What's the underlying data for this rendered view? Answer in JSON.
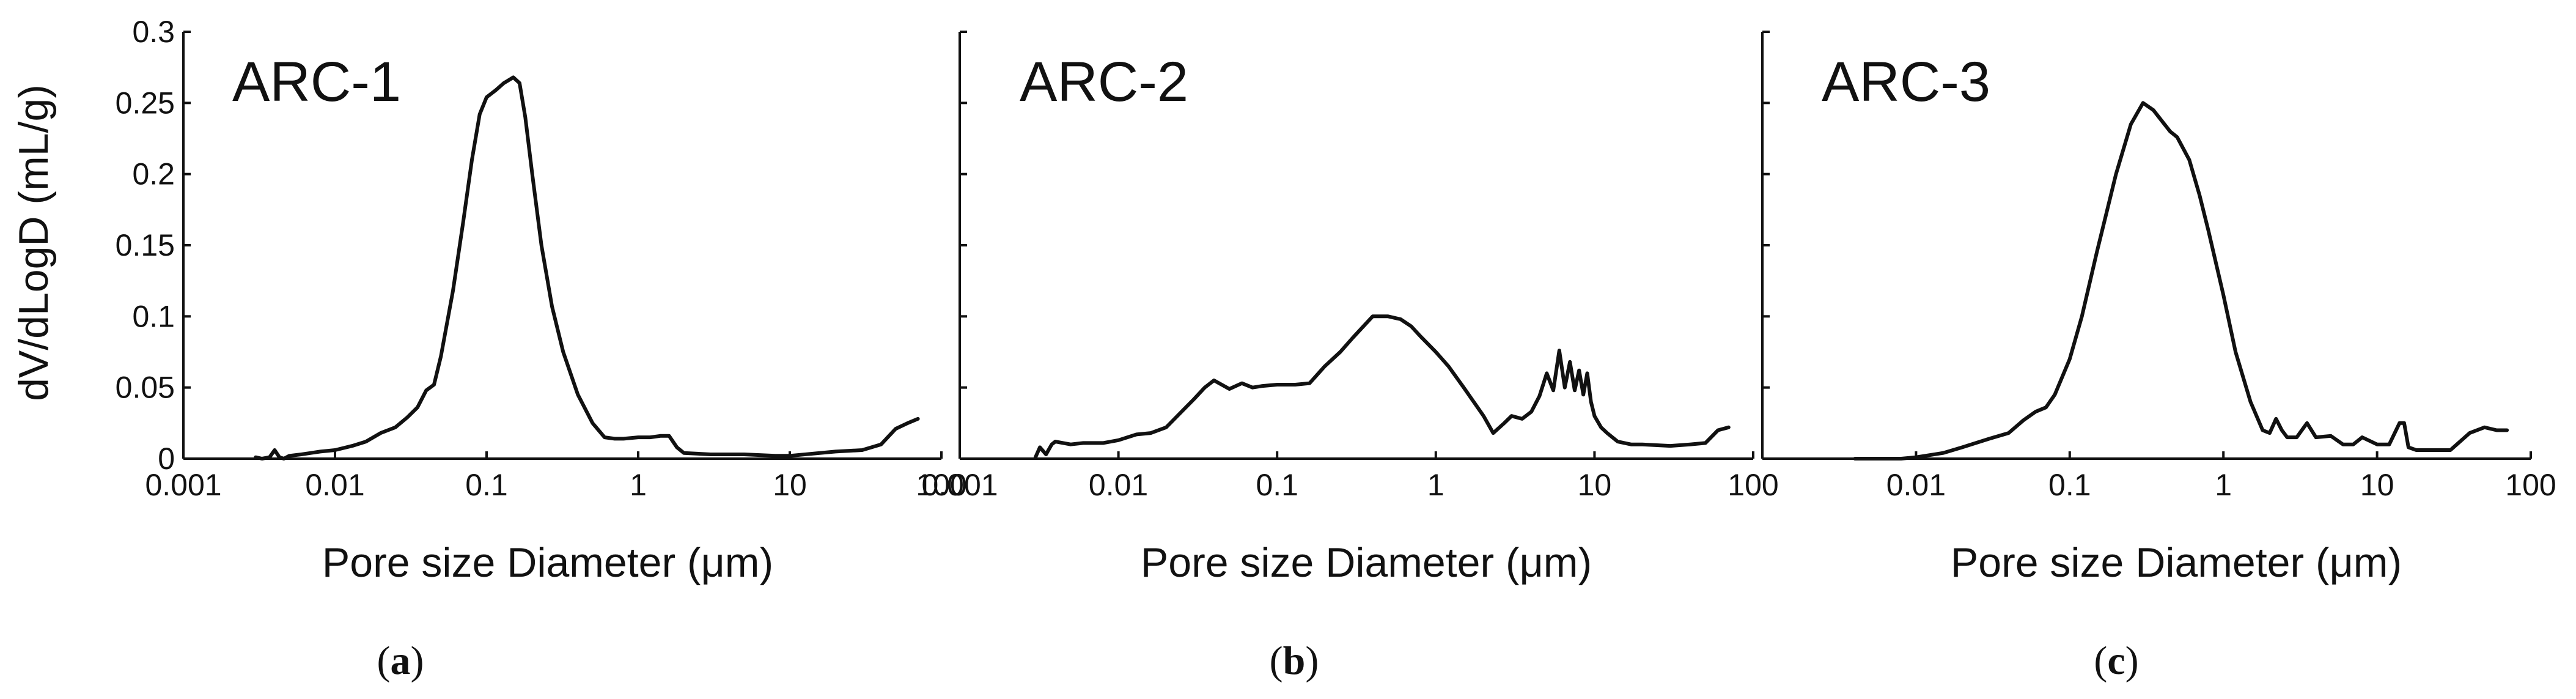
{
  "chart_data": [
    {
      "type": "line",
      "title": "ARC-1",
      "panel_label": "a",
      "xlabel": "Pore size Diameter (μm)",
      "ylabel": "dV/dLogD (mL/g)",
      "xscale": "log",
      "xlim": [
        0.001,
        100
      ],
      "ylim": [
        0,
        0.3
      ],
      "xticks": [
        "0.001",
        "0.01",
        "0.1",
        "1",
        "10",
        "100"
      ],
      "yticks": [
        "0",
        "0.05",
        "0.1",
        "0.15",
        "0.2",
        "0.25",
        "0.3"
      ],
      "series": [
        {
          "x": [
            0.003,
            0.0033,
            0.0037,
            0.004,
            0.0043,
            0.0046,
            0.005,
            0.006,
            0.008,
            0.01,
            0.013,
            0.016,
            0.02,
            0.025,
            0.03,
            0.035,
            0.04,
            0.045,
            0.05,
            0.06,
            0.07,
            0.08,
            0.09,
            0.1,
            0.115,
            0.13,
            0.15,
            0.165,
            0.18,
            0.2,
            0.23,
            0.27,
            0.32,
            0.4,
            0.5,
            0.6,
            0.7,
            0.8,
            1.0,
            1.2,
            1.4,
            1.6,
            1.8,
            2.0,
            3.0,
            5.0,
            8.0,
            10,
            20,
            30,
            40,
            50,
            60,
            70
          ],
          "y": [
            0.001,
            0.0,
            0.001,
            0.006,
            0.001,
            0.0,
            0.002,
            0.003,
            0.005,
            0.006,
            0.009,
            0.012,
            0.018,
            0.022,
            0.029,
            0.036,
            0.048,
            0.052,
            0.072,
            0.118,
            0.166,
            0.21,
            0.242,
            0.254,
            0.259,
            0.264,
            0.268,
            0.264,
            0.24,
            0.2,
            0.15,
            0.107,
            0.075,
            0.045,
            0.025,
            0.015,
            0.014,
            0.014,
            0.015,
            0.015,
            0.016,
            0.016,
            0.008,
            0.004,
            0.003,
            0.003,
            0.002,
            0.002,
            0.005,
            0.006,
            0.01,
            0.021,
            0.025,
            0.028
          ]
        }
      ]
    },
    {
      "type": "line",
      "title": "ARC-2",
      "panel_label": "b",
      "xlabel": "Pore size Diameter (μm)",
      "xscale": "log",
      "xlim": [
        0.001,
        100
      ],
      "ylim": [
        0,
        0.3
      ],
      "xticks": [
        "0.001",
        "0.01",
        "0.1",
        "1",
        "10",
        "100"
      ],
      "series": [
        {
          "x": [
            0.003,
            0.0032,
            0.0035,
            0.0038,
            0.004,
            0.005,
            0.006,
            0.008,
            0.01,
            0.013,
            0.016,
            0.02,
            0.025,
            0.03,
            0.035,
            0.04,
            0.05,
            0.06,
            0.07,
            0.08,
            0.1,
            0.13,
            0.16,
            0.2,
            0.25,
            0.3,
            0.35,
            0.4,
            0.5,
            0.6,
            0.7,
            0.8,
            1.0,
            1.2,
            1.5,
            2.0,
            2.3,
            2.7,
            3.0,
            3.5,
            4.0,
            4.5,
            5.0,
            5.5,
            6.0,
            6.5,
            7.0,
            7.5,
            8.0,
            8.5,
            9.0,
            9.5,
            10,
            11,
            12,
            14,
            17,
            20,
            30,
            40,
            50,
            60,
            70
          ],
          "y": [
            0.001,
            0.008,
            0.003,
            0.01,
            0.012,
            0.01,
            0.011,
            0.011,
            0.013,
            0.017,
            0.018,
            0.022,
            0.033,
            0.042,
            0.05,
            0.055,
            0.049,
            0.053,
            0.05,
            0.051,
            0.052,
            0.052,
            0.053,
            0.065,
            0.075,
            0.085,
            0.093,
            0.1,
            0.1,
            0.098,
            0.093,
            0.086,
            0.075,
            0.065,
            0.05,
            0.03,
            0.018,
            0.025,
            0.03,
            0.028,
            0.033,
            0.044,
            0.06,
            0.048,
            0.076,
            0.05,
            0.068,
            0.048,
            0.062,
            0.045,
            0.06,
            0.04,
            0.03,
            0.022,
            0.018,
            0.012,
            0.01,
            0.01,
            0.009,
            0.01,
            0.011,
            0.02,
            0.022
          ]
        }
      ]
    },
    {
      "type": "line",
      "title": "ARC-3",
      "panel_label": "c",
      "xlabel": "Pore size Diameter (μm)",
      "xscale": "log",
      "xlim": [
        0.001,
        100
      ],
      "ylim": [
        0,
        0.3
      ],
      "xticks": [
        "0.01",
        "0.1",
        "1",
        "10",
        "100"
      ],
      "series": [
        {
          "x": [
            0.004,
            0.006,
            0.008,
            0.01,
            0.015,
            0.02,
            0.03,
            0.04,
            0.05,
            0.06,
            0.07,
            0.08,
            0.1,
            0.12,
            0.15,
            0.2,
            0.25,
            0.3,
            0.35,
            0.4,
            0.45,
            0.5,
            0.6,
            0.7,
            0.8,
            1.0,
            1.2,
            1.5,
            1.8,
            2.0,
            2.2,
            2.4,
            2.6,
            3.0,
            3.5,
            4.0,
            5.0,
            6.0,
            7.0,
            8.0,
            10,
            12,
            14,
            15,
            16,
            18,
            20,
            30,
            40,
            50,
            60,
            70
          ],
          "y": [
            0.0,
            0.0,
            0.0,
            0.001,
            0.004,
            0.008,
            0.014,
            0.018,
            0.027,
            0.033,
            0.036,
            0.045,
            0.07,
            0.1,
            0.145,
            0.2,
            0.235,
            0.25,
            0.245,
            0.237,
            0.23,
            0.226,
            0.21,
            0.185,
            0.16,
            0.115,
            0.075,
            0.04,
            0.02,
            0.018,
            0.028,
            0.02,
            0.015,
            0.015,
            0.025,
            0.015,
            0.016,
            0.01,
            0.01,
            0.015,
            0.01,
            0.01,
            0.025,
            0.025,
            0.008,
            0.006,
            0.006,
            0.006,
            0.018,
            0.022,
            0.02,
            0.02
          ]
        }
      ]
    }
  ]
}
